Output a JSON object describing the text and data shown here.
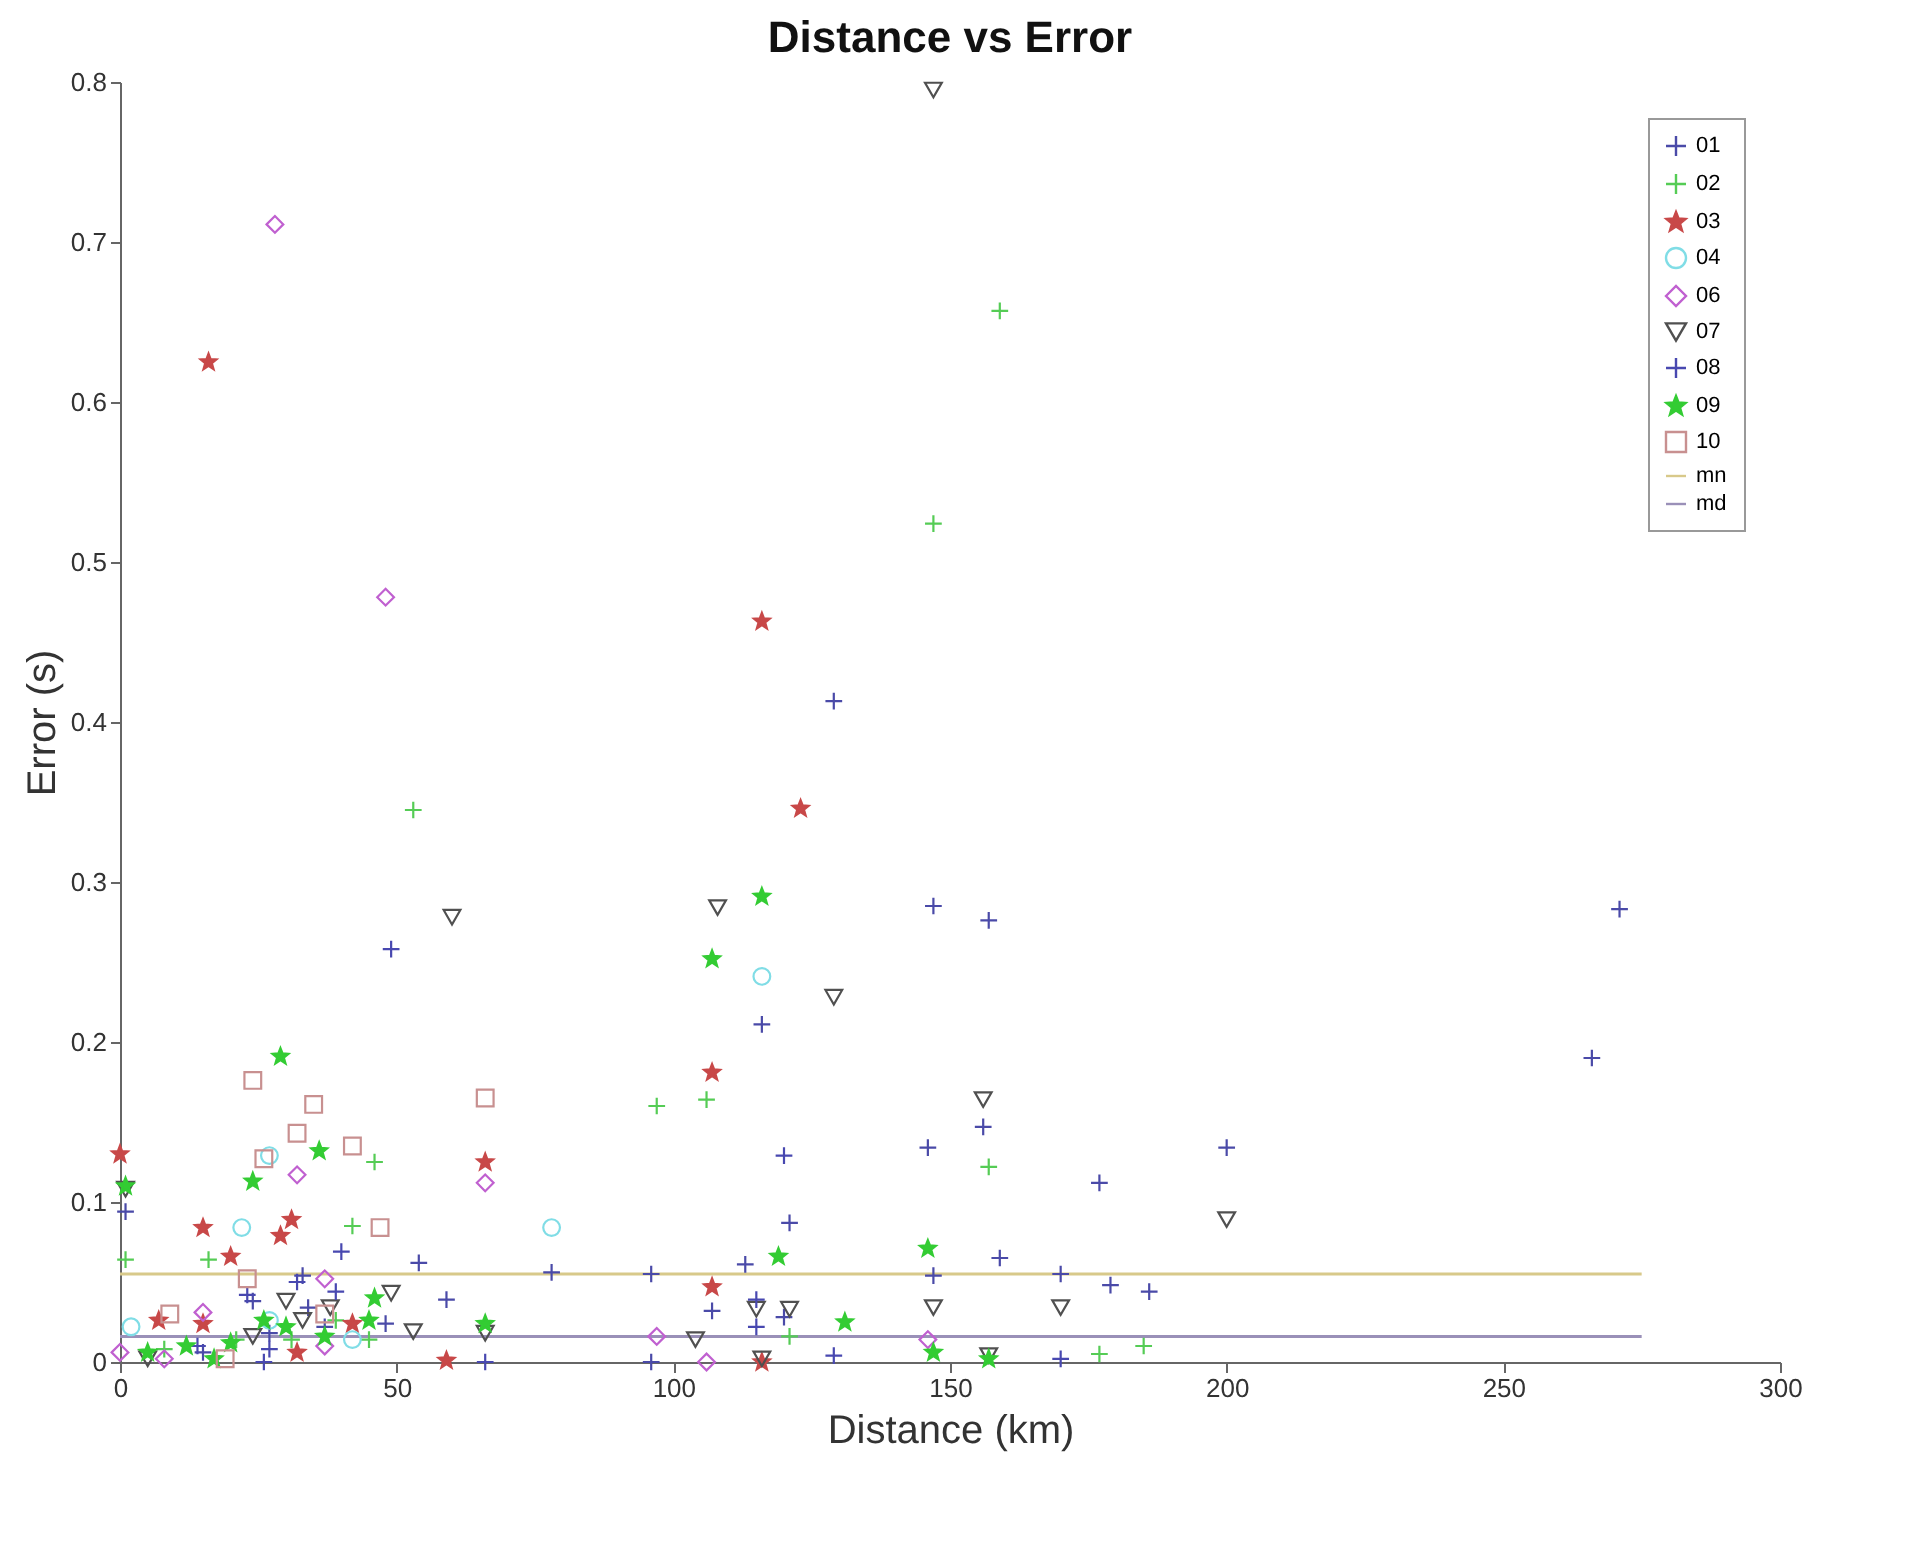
{
  "chart_data": {
    "type": "scatter",
    "title": "Distance vs Error",
    "xlabel": "Distance (km)",
    "ylabel": "Error (s)",
    "xlim": [
      0,
      300
    ],
    "xticks": [
      0,
      50,
      100,
      150,
      200,
      250,
      300
    ],
    "ylim": [
      0,
      0.8
    ],
    "yticks": [
      0,
      0.1,
      0.2,
      0.3,
      0.4,
      0.5,
      0.6,
      0.7,
      0.8
    ],
    "grid": false,
    "legend": "top right",
    "series": [
      {
        "name": "01",
        "type": "scatter",
        "marker": "cross",
        "color": "#4a4aa8",
        "x": [
          1,
          129,
          147,
          157,
          116,
          156,
          146,
          177,
          121,
          147,
          96,
          113,
          159,
          170,
          179,
          186,
          107,
          120,
          96,
          271,
          266,
          200,
          54,
          78,
          59,
          33,
          24,
          27,
          34,
          37,
          15,
          48
        ],
        "values": [
          0.094,
          0.413,
          0.285,
          0.276,
          0.211,
          0.147,
          0.134,
          0.112,
          0.087,
          0.054,
          0.055,
          0.061,
          0.065,
          0.055,
          0.048,
          0.044,
          0.032,
          0.028,
          0,
          0.283,
          0.19,
          0.134,
          0.062,
          0.056,
          0.039,
          0.054,
          0.038,
          0.018,
          0.034,
          0.022,
          0.006,
          0.024
        ]
      },
      {
        "name": "02",
        "type": "scatter",
        "marker": "cross",
        "color": "#55cc55",
        "x": [
          159,
          147,
          53,
          97,
          106,
          46,
          157,
          1,
          16,
          42,
          121,
          177,
          185,
          8,
          21,
          31,
          45,
          39
        ],
        "values": [
          0.657,
          0.524,
          0.345,
          0.16,
          0.164,
          0.125,
          0.122,
          0.064,
          0.064,
          0.085,
          0.016,
          0.005,
          0.01,
          0.008,
          0.014,
          0.014,
          0.014,
          0.026
        ]
      },
      {
        "name": "03",
        "type": "scatter",
        "marker": "star",
        "color": "#c84848",
        "x": [
          16,
          116,
          123,
          107,
          107,
          116,
          0,
          15,
          29,
          31,
          20,
          66,
          59,
          7,
          15,
          32,
          42
        ],
        "values": [
          0.625,
          0.463,
          0.346,
          0.181,
          0.047,
          0,
          0.13,
          0.084,
          0.079,
          0.089,
          0.066,
          0.125,
          0.001,
          0.026,
          0.024,
          0.006,
          0.024
        ]
      },
      {
        "name": "04",
        "type": "scatter",
        "marker": "circle",
        "color": "#80dde6",
        "x": [
          116,
          27,
          22,
          78,
          2,
          27,
          42
        ],
        "values": [
          0.241,
          0.129,
          0.084,
          0.084,
          0.022,
          0.026,
          0.014
        ]
      },
      {
        "name": "06",
        "type": "scatter",
        "marker": "diamond",
        "color": "#c060d0",
        "x": [
          28,
          48,
          97,
          106,
          146,
          66,
          32,
          15,
          0,
          37,
          8,
          37
        ],
        "values": [
          0.711,
          0.478,
          0.016,
          0,
          0.014,
          0.112,
          0.117,
          0.031,
          0.006,
          0.052,
          0.002,
          0.01
        ]
      },
      {
        "name": "07",
        "type": "scatter",
        "marker": "triangle",
        "color": "#505050",
        "x": [
          147,
          108,
          129,
          156,
          60,
          170,
          115,
          121,
          147,
          104,
          116,
          157,
          200,
          49,
          53,
          66,
          1,
          30,
          33,
          38,
          5,
          24
        ],
        "values": [
          0.795,
          0.284,
          0.228,
          0.164,
          0.278,
          0.034,
          0.033,
          0.033,
          0.034,
          0.014,
          0.002,
          0.004,
          0.089,
          0.043,
          0.019,
          0.018,
          0.108,
          0.038,
          0.026,
          0.034,
          0.002,
          0.016
        ]
      },
      {
        "name": "08",
        "type": "scatter",
        "marker": "cross",
        "color": "#4848b0",
        "x": [
          120,
          49,
          115,
          115,
          129,
          170,
          40,
          66,
          32,
          23,
          27,
          39,
          14,
          26
        ],
        "values": [
          0.129,
          0.258,
          0.039,
          0.022,
          0.004,
          0.002,
          0.069,
          0,
          0.05,
          0.042,
          0.008,
          0.044,
          0.01,
          0
        ]
      },
      {
        "name": "09",
        "type": "scatter",
        "marker": "star",
        "color": "#33cc33",
        "x": [
          116,
          107,
          146,
          119,
          131,
          147,
          157,
          29,
          36,
          24,
          1,
          66,
          5,
          12,
          20,
          26,
          30,
          37,
          46,
          45,
          17
        ],
        "values": [
          0.291,
          0.252,
          0.071,
          0.066,
          0.025,
          0.006,
          0.002,
          0.191,
          0.132,
          0.113,
          0.11,
          0.024,
          0.006,
          0.01,
          0.012,
          0.026,
          0.022,
          0.016,
          0.04,
          0.026,
          0.002
        ]
      },
      {
        "name": "10",
        "type": "scatter",
        "marker": "square",
        "color": "#c89090",
        "x": [
          24,
          35,
          32,
          42,
          66,
          26,
          47,
          23,
          9,
          19,
          37
        ],
        "values": [
          0.176,
          0.161,
          0.143,
          0.135,
          0.165,
          0.127,
          0.084,
          0.052,
          0.03,
          0.002,
          0.03
        ]
      },
      {
        "name": "mn",
        "type": "line",
        "color": "#d8c98a",
        "x": [
          0,
          275
        ],
        "values": [
          0.055,
          0.055
        ]
      },
      {
        "name": "md",
        "type": "line",
        "color": "#9a90b8",
        "x": [
          0,
          275
        ],
        "values": [
          0.016,
          0.016
        ]
      }
    ]
  }
}
